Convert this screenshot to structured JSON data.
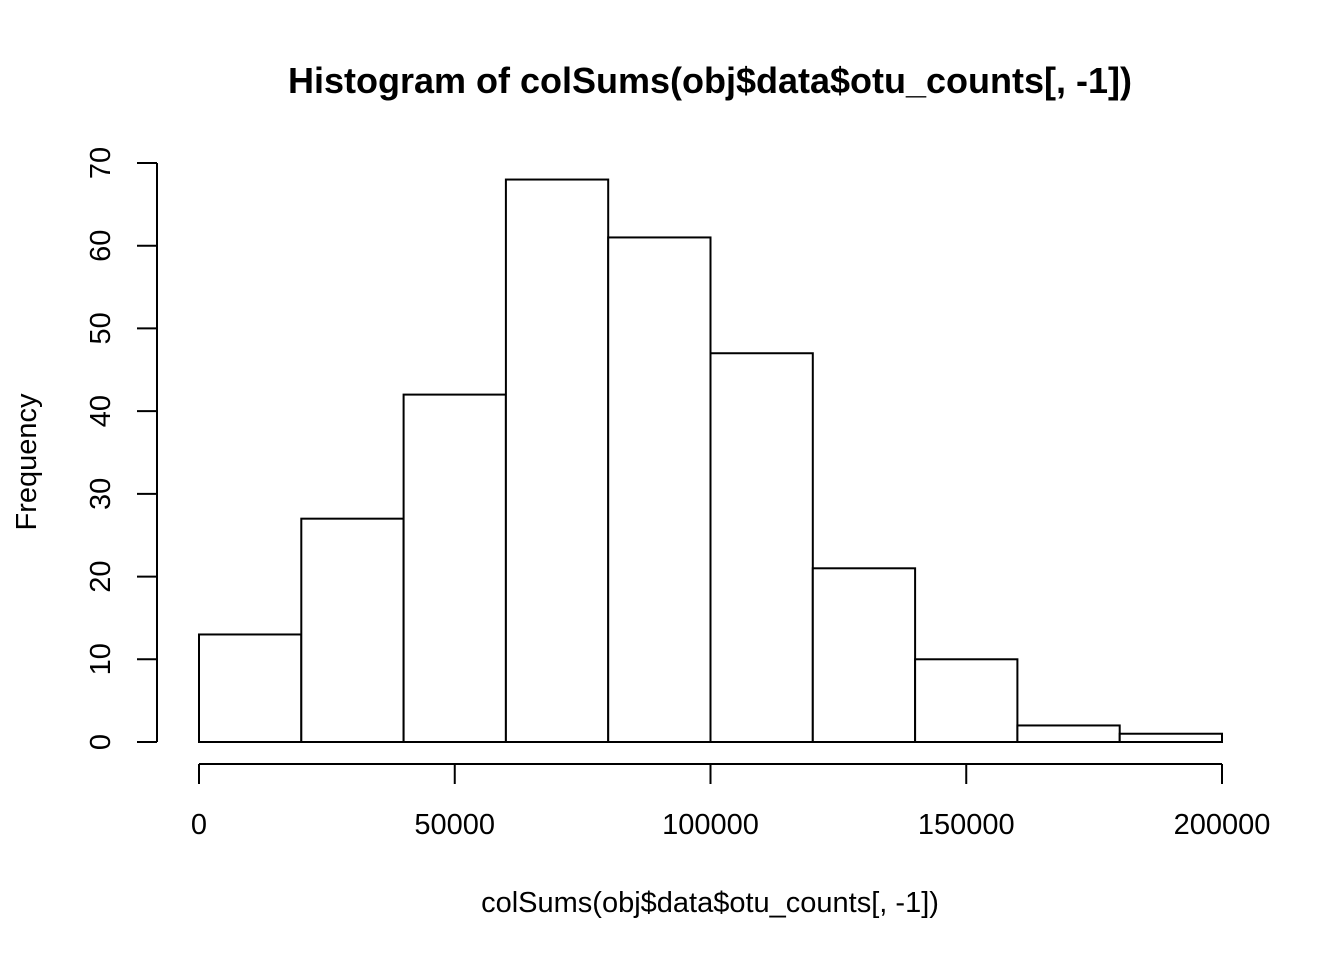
{
  "chart_data": {
    "type": "bar",
    "title": "Histogram of colSums(obj$data$otu_counts[, -1])",
    "xlabel": "colSums(obj$data$otu_counts[, -1])",
    "ylabel": "Frequency",
    "bins": [
      {
        "start": 0,
        "end": 20000,
        "count": 13
      },
      {
        "start": 20000,
        "end": 40000,
        "count": 27
      },
      {
        "start": 40000,
        "end": 60000,
        "count": 42
      },
      {
        "start": 60000,
        "end": 80000,
        "count": 68
      },
      {
        "start": 80000,
        "end": 100000,
        "count": 61
      },
      {
        "start": 100000,
        "end": 120000,
        "count": 47
      },
      {
        "start": 120000,
        "end": 140000,
        "count": 21
      },
      {
        "start": 140000,
        "end": 160000,
        "count": 10
      },
      {
        "start": 160000,
        "end": 180000,
        "count": 2
      },
      {
        "start": 180000,
        "end": 200000,
        "count": 1
      }
    ],
    "xlim": [
      0,
      200000
    ],
    "ylim": [
      0,
      70
    ],
    "x_ticks": [
      0,
      50000,
      100000,
      150000,
      200000
    ],
    "x_tick_labels": [
      "0",
      "50000",
      "100000",
      "150000",
      "200000"
    ],
    "y_ticks": [
      0,
      10,
      20,
      30,
      40,
      50,
      60,
      70
    ],
    "y_tick_labels": [
      "0",
      "10",
      "20",
      "30",
      "40",
      "50",
      "60",
      "70"
    ],
    "grid": false,
    "bar_fill": "#ffffff",
    "bar_stroke": "#000000"
  }
}
